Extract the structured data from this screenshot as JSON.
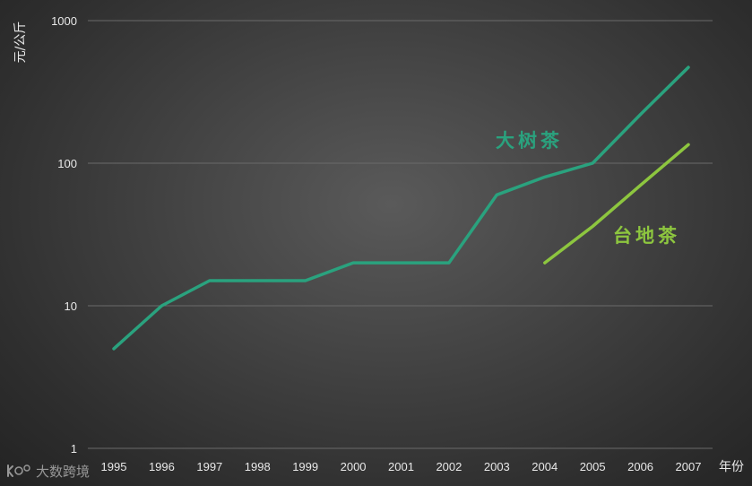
{
  "chart_data": {
    "type": "line",
    "title": "",
    "xlabel": "年份",
    "ylabel": "元/公斤",
    "yscale": "log",
    "ylim": [
      1,
      1000
    ],
    "yticks": [
      1,
      10,
      100,
      1000
    ],
    "ytick_labels": [
      "1",
      "10",
      "100",
      "1000"
    ],
    "categories": [
      "1995",
      "1996",
      "1997",
      "1998",
      "1999",
      "2000",
      "2001",
      "2002",
      "2003",
      "2004",
      "2005",
      "2006",
      "2007"
    ],
    "grid": true,
    "legend": "none",
    "series": [
      {
        "name": "大树茶",
        "color": "#2aa27e",
        "values": [
          5,
          10,
          15,
          15,
          15,
          20,
          20,
          20,
          60,
          80,
          100,
          220,
          470
        ]
      },
      {
        "name": "台地茶",
        "color": "#8dc63f",
        "values": [
          null,
          null,
          null,
          null,
          null,
          null,
          null,
          null,
          null,
          20,
          36,
          70,
          135
        ]
      }
    ]
  },
  "watermark": {
    "text": "大数跨境"
  }
}
